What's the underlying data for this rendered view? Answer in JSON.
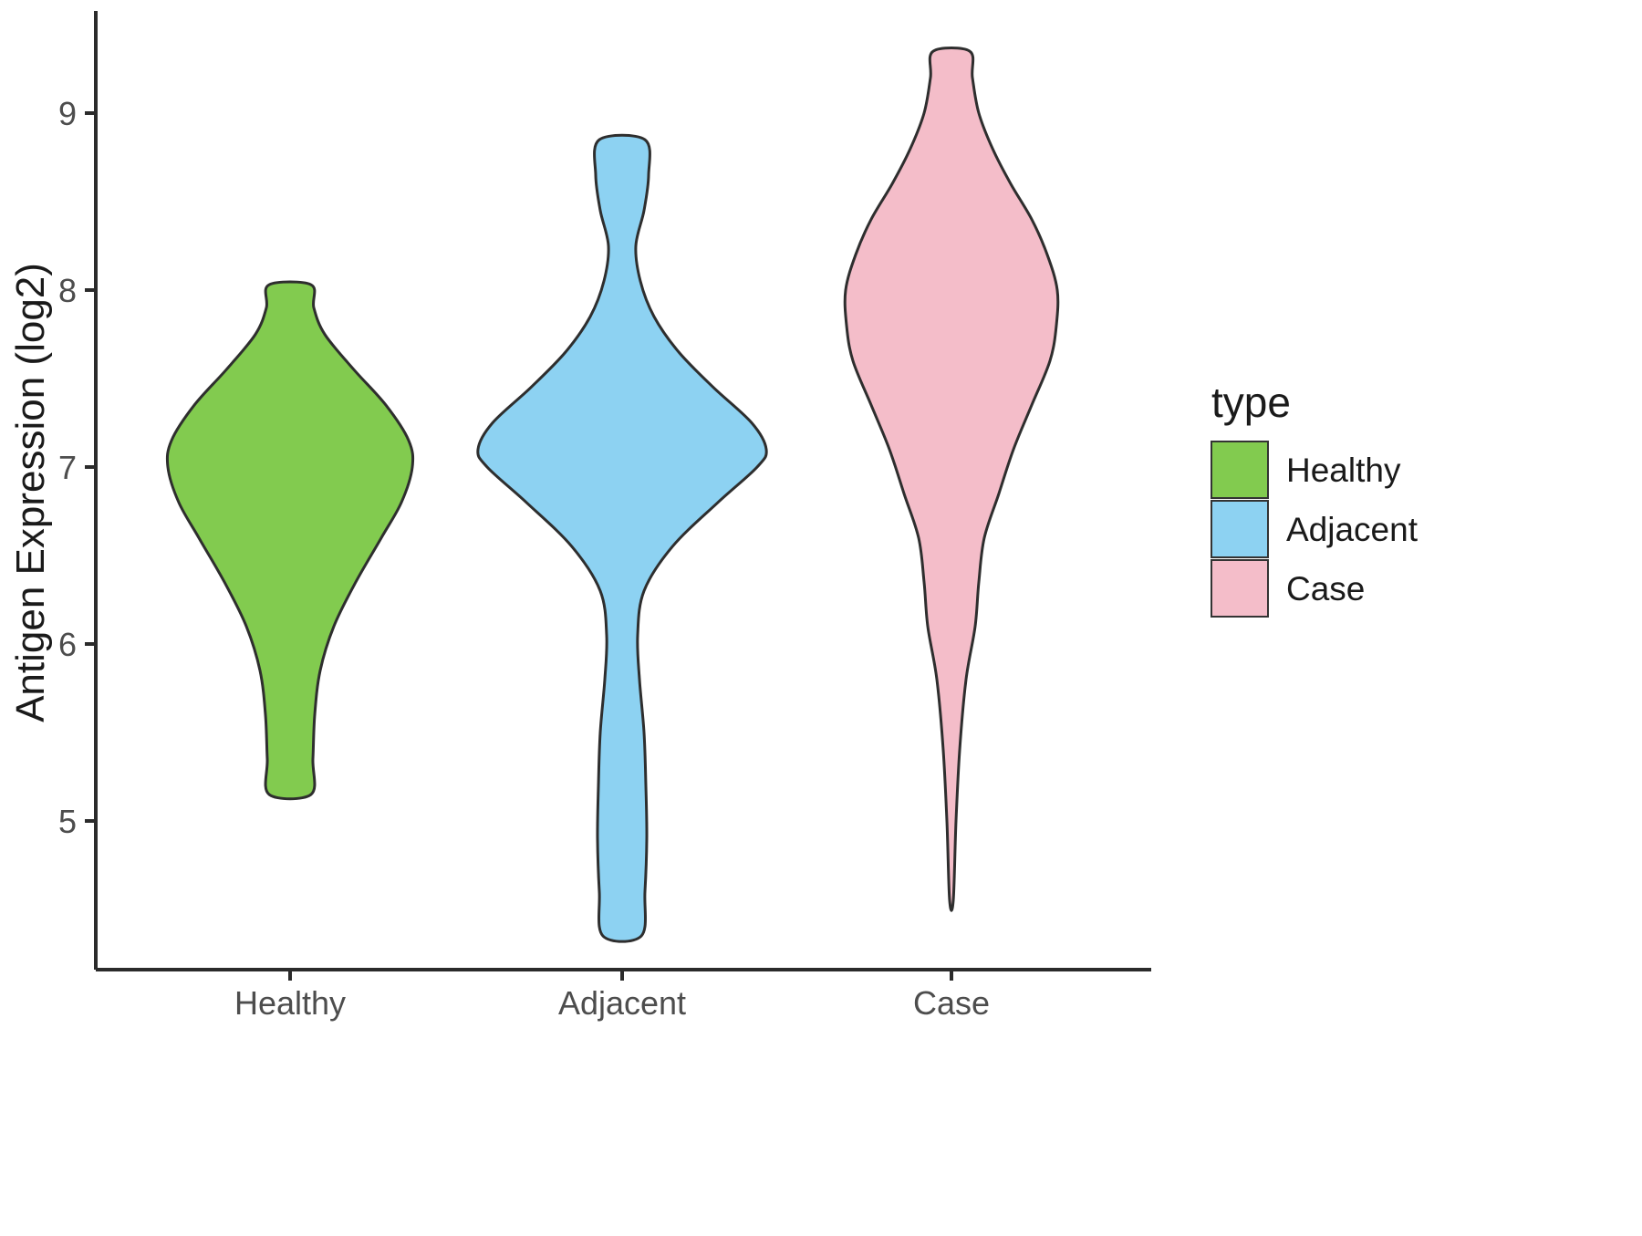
{
  "figure": {
    "background": "#ffffff",
    "axis_color": "#2b2b2b",
    "outline_color": "#2e2e2e",
    "tick_label_color": "#4d4d4d"
  },
  "axes": {
    "y_title": "Antigen Expression (log2)",
    "y_ticks": [
      {
        "value": 5,
        "label": "5"
      },
      {
        "value": 6,
        "label": "6"
      },
      {
        "value": 7,
        "label": "7"
      },
      {
        "value": 8,
        "label": "8"
      },
      {
        "value": 9,
        "label": "9"
      }
    ],
    "x_ticks": [
      {
        "label": "Healthy"
      },
      {
        "label": "Adjacent"
      },
      {
        "label": "Case"
      }
    ]
  },
  "legend": {
    "title": "type",
    "entries": [
      {
        "label": "Healthy",
        "color": "#82CB4F"
      },
      {
        "label": "Adjacent",
        "color": "#8DD2F2"
      },
      {
        "label": "Case",
        "color": "#F4BDC9"
      }
    ]
  },
  "chart_data": {
    "type": "violin",
    "title": "",
    "xlabel": "",
    "ylabel": "Antigen Expression (log2)",
    "categories": [
      "Healthy",
      "Adjacent",
      "Case"
    ],
    "ylim": [
      4.1,
      9.6
    ],
    "y_axis_ticks": [
      5,
      6,
      7,
      8,
      9
    ],
    "legend_position": "right",
    "grid": false,
    "violins": [
      {
        "name": "Healthy",
        "color": "#82CB4F",
        "y_range": [
          5.15,
          8.03
        ],
        "peak_value": 7.0,
        "profile": [
          [
            5.15,
            23
          ],
          [
            5.35,
            25
          ],
          [
            5.6,
            27
          ],
          [
            5.85,
            33
          ],
          [
            6.1,
            48
          ],
          [
            6.35,
            72
          ],
          [
            6.6,
            100
          ],
          [
            6.8,
            122
          ],
          [
            7.0,
            134
          ],
          [
            7.15,
            130
          ],
          [
            7.35,
            105
          ],
          [
            7.55,
            70
          ],
          [
            7.75,
            38
          ],
          [
            7.9,
            26
          ],
          [
            8.03,
            23
          ]
        ]
      },
      {
        "name": "Adjacent",
        "color": "#8DD2F2",
        "y_range": [
          4.35,
          8.85
        ],
        "peak_value": 7.1,
        "profile": [
          [
            4.35,
            21
          ],
          [
            4.6,
            25
          ],
          [
            4.9,
            27
          ],
          [
            5.2,
            26
          ],
          [
            5.5,
            24
          ],
          [
            5.8,
            19
          ],
          [
            6.05,
            17
          ],
          [
            6.3,
            24
          ],
          [
            6.55,
            55
          ],
          [
            6.8,
            105
          ],
          [
            7.0,
            148
          ],
          [
            7.1,
            158
          ],
          [
            7.25,
            142
          ],
          [
            7.45,
            100
          ],
          [
            7.65,
            62
          ],
          [
            7.85,
            35
          ],
          [
            8.05,
            20
          ],
          [
            8.25,
            15
          ],
          [
            8.45,
            24
          ],
          [
            8.65,
            29
          ],
          [
            8.85,
            25
          ]
        ]
      },
      {
        "name": "Case",
        "color": "#F4BDC9",
        "y_range": [
          4.55,
          9.35
        ],
        "peak_value": 7.9,
        "profile": [
          [
            4.55,
            2
          ],
          [
            5.0,
            5
          ],
          [
            5.4,
            9
          ],
          [
            5.8,
            16
          ],
          [
            6.1,
            26
          ],
          [
            6.35,
            30
          ],
          [
            6.6,
            36
          ],
          [
            6.85,
            52
          ],
          [
            7.1,
            68
          ],
          [
            7.35,
            88
          ],
          [
            7.6,
            108
          ],
          [
            7.8,
            115
          ],
          [
            8.0,
            116
          ],
          [
            8.2,
            105
          ],
          [
            8.4,
            88
          ],
          [
            8.6,
            65
          ],
          [
            8.8,
            45
          ],
          [
            9.0,
            30
          ],
          [
            9.2,
            23
          ],
          [
            9.35,
            20
          ]
        ]
      }
    ]
  }
}
